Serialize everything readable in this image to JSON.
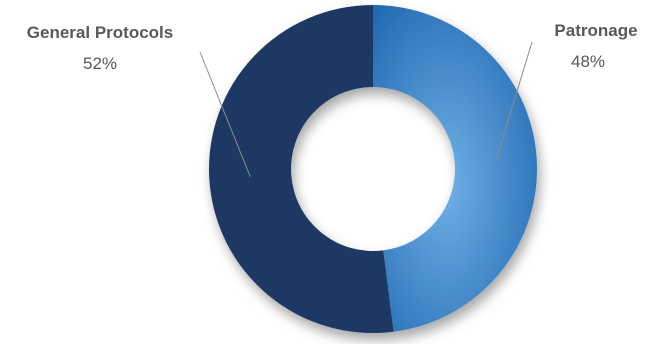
{
  "chart_data": {
    "type": "pie",
    "categories": [
      "General Protocols",
      "Patronage"
    ],
    "values": [
      52,
      48
    ],
    "value_labels": [
      "52%",
      "48%"
    ],
    "colors": {
      "General Protocols": "#1f3864",
      "Patronage": "#4a90d0"
    },
    "gradient_stops": {
      "Patronage": [
        "#1b63ad",
        "#6fb0e6"
      ]
    },
    "style": "donut",
    "legend": "none"
  }
}
